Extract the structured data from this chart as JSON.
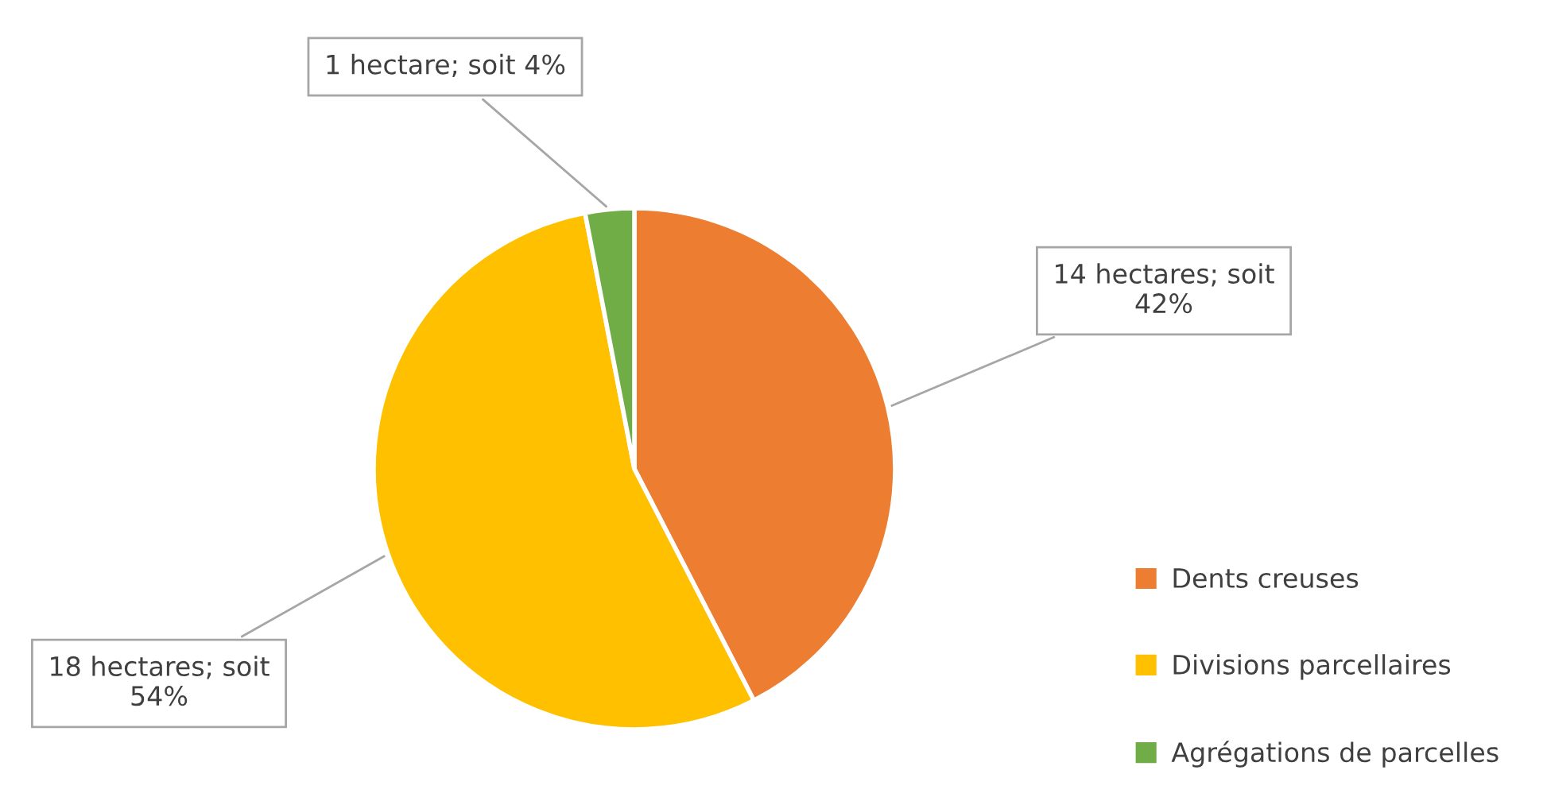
{
  "chart_data": {
    "type": "pie",
    "categories": [
      "Dents creuses",
      "Divisions parcellaires",
      "Agrégations de parcelles"
    ],
    "values": [
      14,
      18,
      1
    ],
    "colors": [
      "#ed7d31",
      "#ffc000",
      "#70ad47"
    ],
    "value_labels": [
      "14 hectares; soit\n42%",
      "18 hectares; soit\n54%",
      "1 hectare; soit 4%"
    ],
    "legend": "right"
  }
}
